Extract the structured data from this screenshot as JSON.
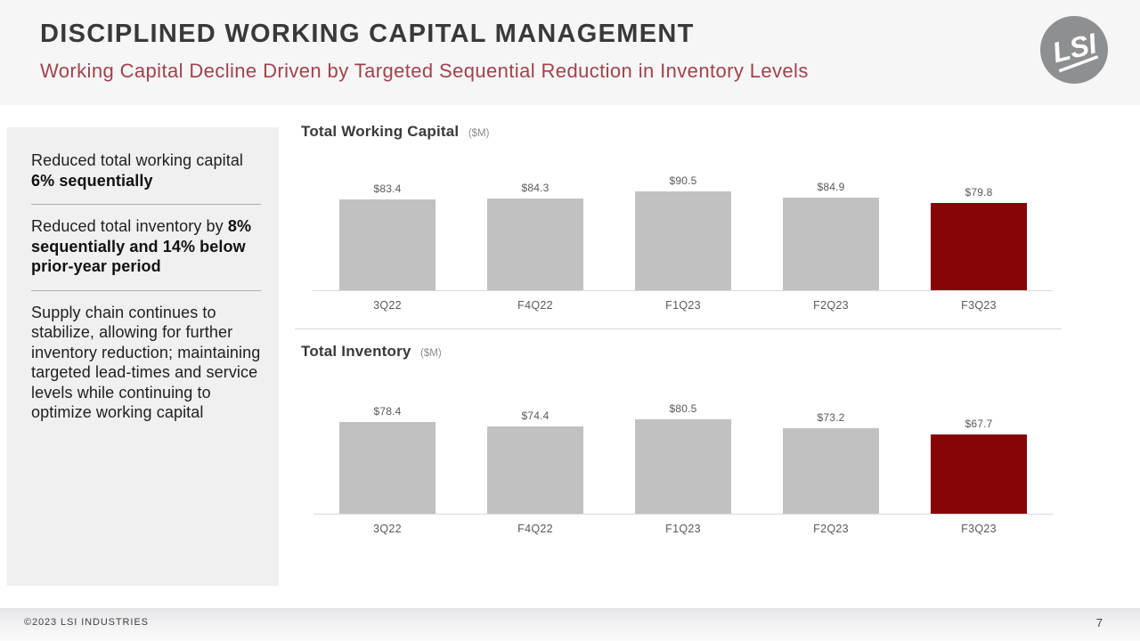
{
  "header": {
    "title": "DISCIPLINED WORKING CAPITAL MANAGEMENT",
    "subtitle": "Working Capital Decline Driven by Targeted Sequential Reduction in Inventory Levels",
    "logo_text": "LSI"
  },
  "sidebar": {
    "bullets": [
      {
        "segments": [
          {
            "text": "Reduced total working capital ",
            "bold": false
          },
          {
            "text": "6% sequentially",
            "bold": true
          }
        ]
      },
      {
        "segments": [
          {
            "text": "Reduced total inventory by ",
            "bold": false
          },
          {
            "text": "8% sequentially and 14% below prior-year period",
            "bold": true
          }
        ]
      },
      {
        "segments": [
          {
            "text": "Supply chain continues to stabilize, allowing for further inventory reduction; maintaining targeted lead-times and service levels while continuing to optimize working capital",
            "bold": false
          }
        ]
      }
    ]
  },
  "chart_data": [
    {
      "type": "bar",
      "title": "Total Working Capital",
      "unit_label": "($M)",
      "categories": [
        "3Q22",
        "F4Q22",
        "F1Q23",
        "F2Q23",
        "F3Q23"
      ],
      "values": [
        83.4,
        84.3,
        90.5,
        84.9,
        79.8
      ],
      "value_labels": [
        "$83.4",
        "$84.3",
        "$90.5",
        "$84.9",
        "$79.8"
      ],
      "highlight_index": 4,
      "ylim": [
        0,
        110
      ],
      "grid": false,
      "legend": "none"
    },
    {
      "type": "bar",
      "title": "Total Inventory",
      "unit_label": "($M)",
      "categories": [
        "3Q22",
        "F4Q22",
        "F1Q23",
        "F2Q23",
        "F3Q23"
      ],
      "values": [
        78.4,
        74.4,
        80.5,
        73.2,
        67.7
      ],
      "value_labels": [
        "$78.4",
        "$74.4",
        "$80.5",
        "$73.2",
        "$67.7"
      ],
      "highlight_index": 4,
      "ylim": [
        0,
        103
      ],
      "grid": false,
      "legend": "none"
    }
  ],
  "footer": {
    "copyright": "©2023 LSI INDUSTRIES",
    "page_number": "7"
  },
  "colors": {
    "bar_default": "#c1c1c1",
    "bar_highlight": "#870407",
    "subtitle_red": "#a1424a",
    "title_dark": "#3b3838",
    "header_bg": "#f6f6f6",
    "sidebar_bg": "#f0f0f0",
    "logo_gray": "#8e8f90"
  }
}
